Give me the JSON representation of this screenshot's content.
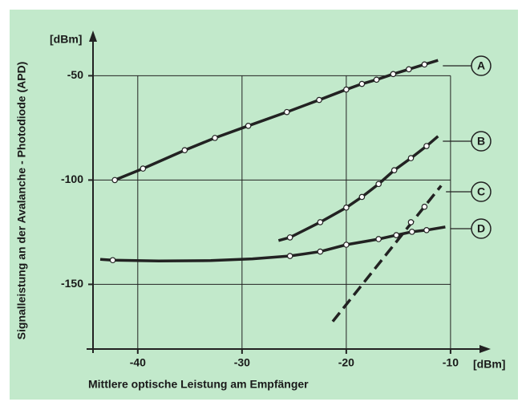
{
  "chart_data": {
    "type": "line",
    "x_label": "Mittlere optische Leistung am Empfänger",
    "y_label": "Signalleistung an der Avalanche - Photodiode (APD)",
    "x_unit": "[dBm]",
    "y_unit": "[dBm]",
    "xlim": [
      -44.6,
      -6.3
    ],
    "ylim": [
      -181,
      -31
    ],
    "xticks": [
      -40,
      -30,
      -20,
      -10
    ],
    "yticks": [
      -50,
      -100,
      -150
    ],
    "grid": true,
    "background": "#c2e9cb",
    "series": [
      {
        "name": "A",
        "color": "#222",
        "dashed": false,
        "x": [
          -42.2,
          -39.5,
          -35.5,
          -32.6,
          -29.4,
          -25.7,
          -22.6,
          -20,
          -18.5,
          -17.1,
          -15.5,
          -14,
          -12.5,
          -11.2
        ],
        "values": [
          -100,
          -94.5,
          -85.7,
          -79.8,
          -74,
          -67.4,
          -61.6,
          -56.6,
          -53.9,
          -51.9,
          -49.2,
          -46.9,
          -44.6,
          -42.6
        ],
        "points_x": [
          -42.2,
          -39.5,
          -35.5,
          -32.6,
          -29.4,
          -25.7,
          -22.6,
          -20,
          -18.5,
          -17.1,
          -15.5,
          -14,
          -12.5
        ],
        "points_y": [
          -100,
          -94.5,
          -85.7,
          -79.8,
          -74,
          -67.4,
          -61.6,
          -56.6,
          -53.9,
          -51.9,
          -49.2,
          -46.9,
          -44.6
        ]
      },
      {
        "name": "B",
        "color": "#222",
        "dashed": false,
        "x": [
          -26.5,
          -25.4,
          -22.5,
          -20,
          -18.5,
          -16.9,
          -15.4,
          -13.8,
          -12.3,
          -11.2
        ],
        "values": [
          -129,
          -127.5,
          -120.2,
          -113.2,
          -108.1,
          -101.9,
          -95.3,
          -89.5,
          -83.7,
          -79
        ],
        "points_x": [
          -25.4,
          -22.5,
          -20,
          -18.5,
          -16.9,
          -15.4,
          -13.8,
          -12.3
        ],
        "points_y": [
          -127.5,
          -120.2,
          -113.2,
          -108.1,
          -101.9,
          -95.3,
          -89.5,
          -83.7
        ]
      },
      {
        "name": "C",
        "color": "#222",
        "dashed": true,
        "x": [
          -21.3,
          -10.9
        ],
        "values": [
          -167.8,
          -102.7
        ],
        "points_x": [
          -13.8,
          -12.5
        ],
        "points_y": [
          -120.2,
          -112.8
        ]
      },
      {
        "name": "D",
        "color": "#222",
        "dashed": false,
        "x": [
          -43.6,
          -42.4,
          -38,
          -33,
          -29,
          -25.4,
          -22.5,
          -20,
          -16.9,
          -15.2,
          -13.7,
          -12.3,
          -10.5
        ],
        "values": [
          -138,
          -138.4,
          -138.8,
          -138.6,
          -137.8,
          -136.4,
          -134.3,
          -131,
          -128.3,
          -126.4,
          -124.8,
          -124,
          -122.5
        ],
        "points_x": [
          -42.4,
          -25.4,
          -22.5,
          -20,
          -16.9,
          -15.2,
          -13.7,
          -12.3
        ],
        "points_y": [
          -138.4,
          -136.4,
          -134.3,
          -131,
          -128.3,
          -126.4,
          -124.8,
          -124
        ]
      }
    ]
  }
}
